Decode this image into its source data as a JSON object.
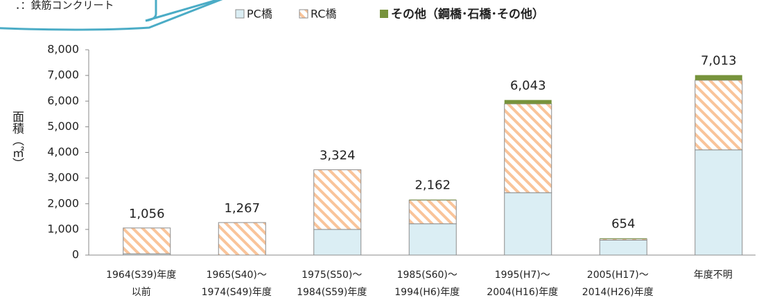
{
  "chart_data": {
    "type": "stacked-bar",
    "annotation": "．：鉄筋コンクリート",
    "y_label": "面積（㎡）",
    "categories": [
      [
        "1964(S39)年度",
        "以前"
      ],
      [
        "1965(S40)～",
        "1974(S49)年度"
      ],
      [
        "1975(S50)～",
        "1984(S59)年度"
      ],
      [
        "1985(S60)～",
        "1994(H6)年度"
      ],
      [
        "1995(H7)～",
        "2004(H16)年度"
      ],
      [
        "2005(H17)～",
        "2014(H26)年度"
      ],
      [
        "年度不明"
      ]
    ],
    "series": [
      {
        "name": "PC橋",
        "color": "#dbeef4",
        "values": [
          50,
          0,
          1000,
          1220,
          2430,
          580,
          4100
        ]
      },
      {
        "name": "RC橋",
        "color": "#f9c49a",
        "values": [
          1006,
          1267,
          2324,
          920,
          3463,
          50,
          2713
        ]
      },
      {
        "name": "その他（鋼橋･石橋･その他）",
        "color": "#77933c",
        "values": [
          0,
          0,
          0,
          22,
          150,
          24,
          200
        ]
      }
    ],
    "totals": [
      1056,
      1267,
      3324,
      2162,
      6043,
      654,
      7013
    ],
    "total_labels": [
      "1,056",
      "1,267",
      "3,324",
      "2,162",
      "6,043",
      "654",
      "7,013"
    ],
    "ylim": [
      0,
      8000
    ],
    "yticks": [
      0,
      {
        "value": 1000,
        "label": "1,000"
      },
      {
        "value": 2000,
        "label": "2,000"
      },
      {
        "value": 3000,
        "label": "3,000"
      },
      {
        "value": 4000,
        "label": "4,000"
      },
      {
        "value": 5000,
        "label": "5,000"
      },
      {
        "value": 6000,
        "label": "6,000"
      },
      {
        "value": 7000,
        "label": "7,000"
      },
      {
        "value": 8000,
        "label": "8,000"
      }
    ]
  }
}
